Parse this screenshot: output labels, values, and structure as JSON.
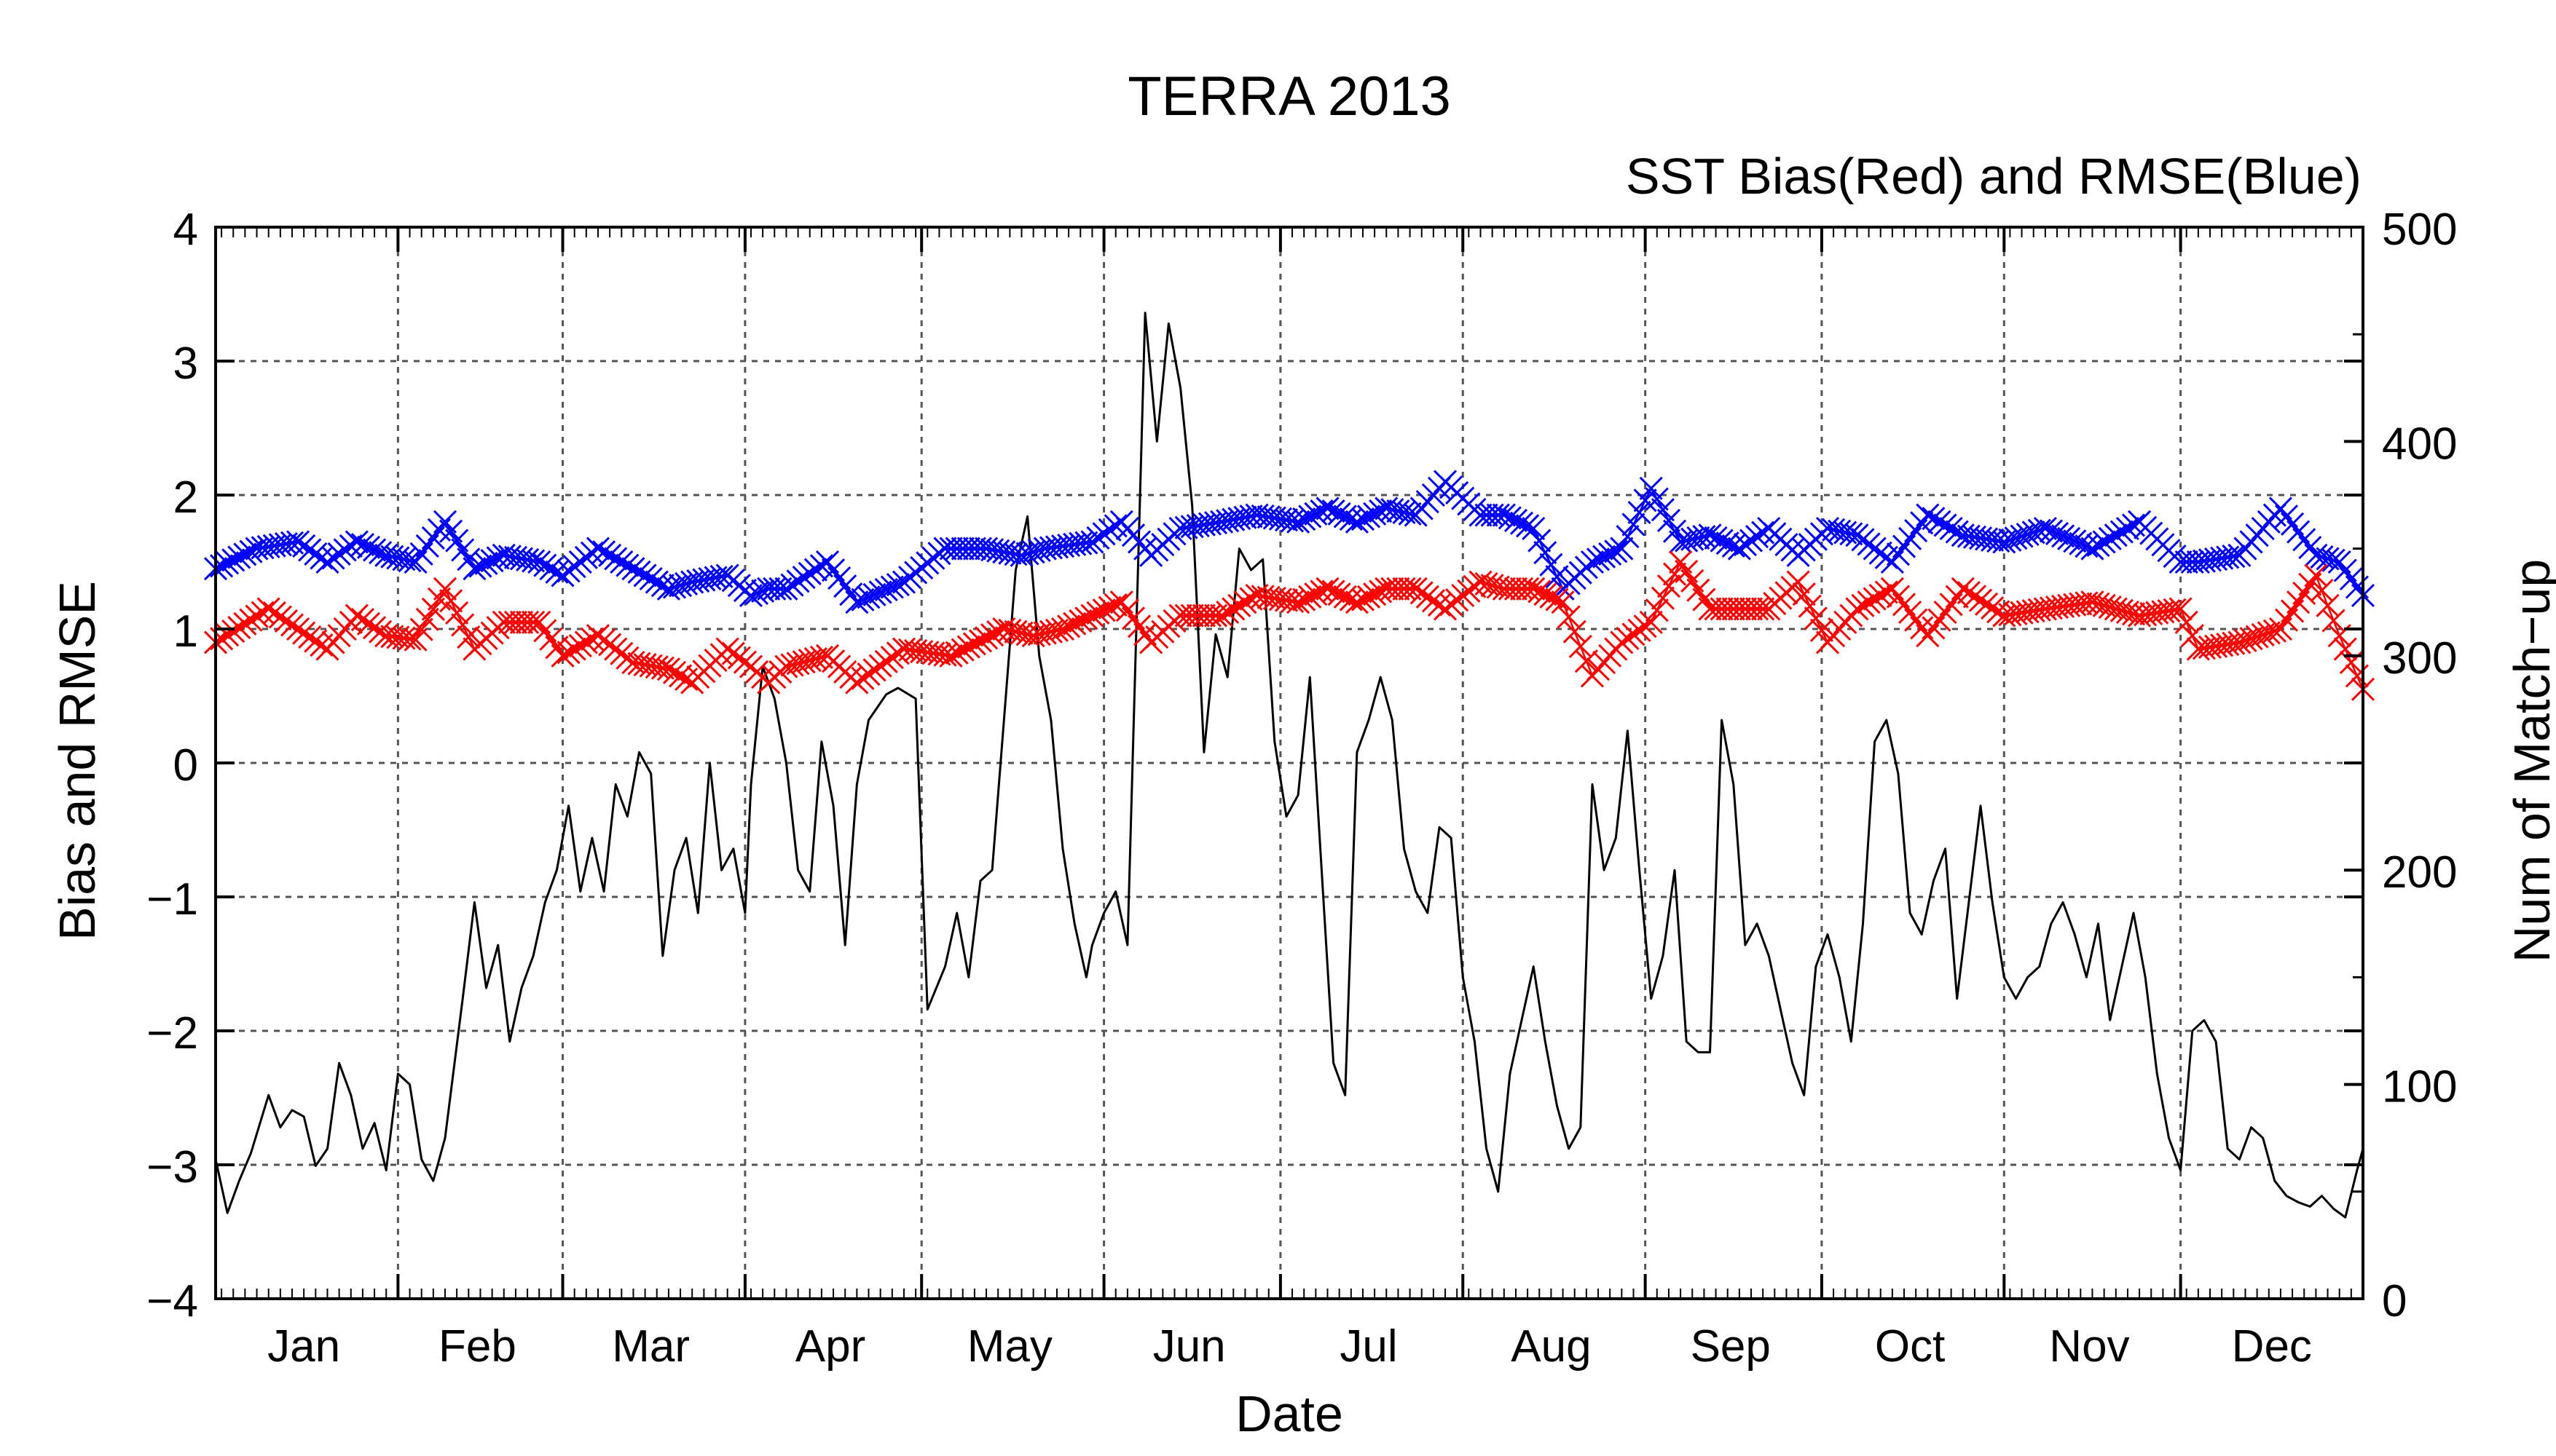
{
  "chart_data": {
    "type": "line",
    "title": "TERRA 2013",
    "subtitle": "SST Bias(Red) and RMSE(Blue)",
    "xlabel": "Date",
    "ylabel": "Bias and RMSE",
    "y2label": "Num of Match−up",
    "ylim": [
      -4,
      4
    ],
    "y2lim": [
      0,
      500
    ],
    "xlim": [
      1,
      366
    ],
    "grid": true,
    "y_ticks": [
      "4",
      "3",
      "2",
      "1",
      "0",
      "−1",
      "−2",
      "−3",
      "−4"
    ],
    "y2_ticks": [
      "500",
      "400",
      "300",
      "200",
      "100",
      "0"
    ],
    "month_labels": [
      "Jan",
      "Feb",
      "Mar",
      "Apr",
      "May",
      "Jun",
      "Jul",
      "Aug",
      "Sep",
      "Oct",
      "Nov",
      "Dec"
    ],
    "month_starts": [
      1,
      32,
      60,
      91,
      121,
      152,
      182,
      213,
      244,
      274,
      305,
      335
    ],
    "colors": {
      "bias": "#ff0000",
      "rmse": "#0000ff",
      "count": "#000000",
      "title": "#808080"
    },
    "series": [
      {
        "key": "bias",
        "axis": "left",
        "marker": "x",
        "x": [
          1,
          10,
          20,
          25,
          30,
          35,
          40,
          45,
          50,
          56,
          60,
          66,
          72,
          78,
          82,
          88,
          92,
          95,
          98,
          105,
          110,
          118,
          126,
          135,
          140,
          145,
          150,
          155,
          160,
          165,
          172,
          178,
          185,
          190,
          195,
          200,
          205,
          210,
          216,
          220,
          225,
          230,
          235,
          240,
          245,
          250,
          255,
          260,
          265,
          270,
          275,
          280,
          286,
          292,
          298,
          305,
          312,
          320,
          328,
          335,
          338,
          345,
          352,
          358,
          362,
          366
        ],
        "y": [
          0.9,
          1.15,
          0.85,
          1.1,
          0.95,
          0.92,
          1.3,
          0.85,
          1.05,
          1.05,
          0.8,
          0.95,
          0.75,
          0.7,
          0.6,
          0.85,
          0.72,
          0.6,
          0.72,
          0.8,
          0.6,
          0.85,
          0.8,
          1.0,
          0.95,
          1.0,
          1.1,
          1.2,
          0.9,
          1.1,
          1.1,
          1.25,
          1.2,
          1.3,
          1.2,
          1.3,
          1.3,
          1.15,
          1.35,
          1.3,
          1.3,
          1.2,
          0.65,
          0.9,
          1.05,
          1.5,
          1.15,
          1.15,
          1.15,
          1.35,
          0.9,
          1.15,
          1.3,
          0.95,
          1.3,
          1.1,
          1.15,
          1.2,
          1.1,
          1.15,
          0.85,
          0.9,
          1.0,
          1.4,
          0.95,
          0.55
        ]
      },
      {
        "key": "rmse",
        "axis": "left",
        "marker": "x",
        "x": [
          1,
          8,
          15,
          20,
          25,
          30,
          35,
          40,
          45,
          50,
          56,
          60,
          66,
          72,
          78,
          82,
          88,
          92,
          95,
          98,
          105,
          110,
          118,
          125,
          132,
          138,
          142,
          150,
          155,
          160,
          165,
          172,
          178,
          185,
          190,
          195,
          200,
          205,
          210,
          216,
          220,
          225,
          230,
          235,
          240,
          245,
          250,
          255,
          260,
          265,
          270,
          275,
          280,
          286,
          292,
          298,
          305,
          312,
          320,
          328,
          335,
          338,
          345,
          352,
          358,
          362,
          366
        ],
        "y": [
          1.45,
          1.6,
          1.65,
          1.5,
          1.65,
          1.55,
          1.5,
          1.8,
          1.45,
          1.55,
          1.5,
          1.4,
          1.6,
          1.45,
          1.3,
          1.35,
          1.4,
          1.25,
          1.3,
          1.3,
          1.5,
          1.2,
          1.35,
          1.6,
          1.6,
          1.55,
          1.6,
          1.65,
          1.8,
          1.55,
          1.75,
          1.8,
          1.85,
          1.8,
          1.9,
          1.8,
          1.9,
          1.85,
          2.1,
          1.85,
          1.85,
          1.75,
          1.3,
          1.5,
          1.6,
          2.05,
          1.65,
          1.7,
          1.6,
          1.75,
          1.55,
          1.75,
          1.7,
          1.5,
          1.85,
          1.7,
          1.65,
          1.75,
          1.6,
          1.8,
          1.5,
          1.5,
          1.55,
          1.9,
          1.55,
          1.5,
          1.25
        ]
      },
      {
        "key": "count",
        "axis": "right",
        "marker": "none",
        "x": [
          1,
          3,
          5,
          7,
          10,
          12,
          14,
          16,
          18,
          20,
          22,
          24,
          26,
          28,
          30,
          32,
          34,
          36,
          38,
          40,
          43,
          45,
          47,
          49,
          51,
          53,
          55,
          57,
          59,
          61,
          63,
          65,
          67,
          69,
          71,
          73,
          75,
          77,
          79,
          81,
          83,
          85,
          87,
          89,
          91,
          92,
          94,
          96,
          98,
          100,
          102,
          104,
          106,
          108,
          110,
          112,
          115,
          117,
          120,
          122,
          125,
          127,
          129,
          131,
          133,
          135,
          137,
          139,
          141,
          143,
          145,
          147,
          149,
          150,
          152,
          154,
          156,
          159,
          161,
          163,
          165,
          167,
          169,
          171,
          173,
          175,
          177,
          179,
          181,
          183,
          185,
          187,
          189,
          191,
          193,
          195,
          197,
          199,
          201,
          203,
          205,
          207,
          209,
          211,
          213,
          215,
          217,
          219,
          221,
          223,
          225,
          227,
          229,
          231,
          233,
          235,
          237,
          239,
          241,
          243,
          245,
          247,
          249,
          251,
          253,
          255,
          257,
          259,
          261,
          263,
          265,
          267,
          269,
          271,
          273,
          275,
          277,
          279,
          281,
          283,
          285,
          287,
          289,
          291,
          293,
          295,
          297,
          299,
          301,
          303,
          305,
          307,
          309,
          311,
          313,
          315,
          317,
          319,
          321,
          323,
          325,
          327,
          329,
          331,
          333,
          335,
          337,
          339,
          341,
          343,
          345,
          347,
          349,
          351,
          353,
          355,
          357,
          359,
          361,
          363,
          365,
          366
        ],
        "y": [
          65,
          40,
          55,
          68,
          95,
          80,
          88,
          85,
          62,
          70,
          110,
          95,
          70,
          82,
          60,
          105,
          100,
          65,
          55,
          75,
          140,
          185,
          145,
          165,
          120,
          145,
          160,
          185,
          200,
          230,
          190,
          215,
          190,
          240,
          225,
          255,
          245,
          160,
          200,
          215,
          180,
          250,
          200,
          210,
          180,
          240,
          295,
          280,
          250,
          200,
          190,
          260,
          230,
          165,
          240,
          270,
          282,
          285,
          280,
          135,
          155,
          180,
          150,
          195,
          200,
          270,
          340,
          365,
          300,
          270,
          210,
          175,
          150,
          165,
          180,
          190,
          165,
          460,
          400,
          455,
          425,
          370,
          255,
          310,
          290,
          350,
          340,
          345,
          260,
          225,
          235,
          290,
          200,
          110,
          95,
          255,
          270,
          290,
          270,
          210,
          190,
          180,
          220,
          215,
          150,
          120,
          70,
          50,
          105,
          130,
          155,
          120,
          90,
          70,
          80,
          240,
          200,
          215,
          265,
          200,
          140,
          160,
          200,
          120,
          115,
          115,
          270,
          240,
          165,
          175,
          160,
          135,
          110,
          95,
          155,
          170,
          150,
          120,
          175,
          260,
          270,
          245,
          180,
          170,
          195,
          210,
          140,
          185,
          230,
          185,
          150,
          140,
          150,
          155,
          175,
          185,
          170,
          150,
          175,
          130,
          155,
          180,
          150,
          105,
          75,
          60,
          125,
          130,
          120,
          70,
          65,
          80,
          75,
          55,
          48,
          45,
          43,
          48,
          42,
          38,
          60,
          70
        ]
      }
    ]
  }
}
